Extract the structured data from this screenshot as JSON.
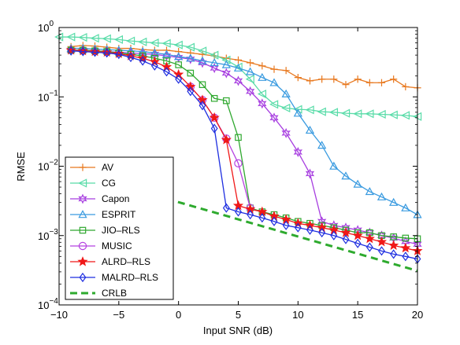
{
  "chart_data": {
    "type": "line",
    "xlabel": "Input SNR (dB)",
    "ylabel": "RMSE",
    "xlim": [
      -10,
      20
    ],
    "ylim": [
      0.0001,
      1
    ],
    "yscale": "log",
    "grid": false,
    "legend_position": "bottom-left",
    "x_ticks": [
      {
        "value": -10,
        "label": "−10"
      },
      {
        "value": -5,
        "label": "−5"
      },
      {
        "value": 0,
        "label": "0"
      },
      {
        "value": 5,
        "label": "5"
      },
      {
        "value": 10,
        "label": "10"
      },
      {
        "value": 15,
        "label": "15"
      },
      {
        "value": 20,
        "label": "20"
      }
    ],
    "y_ticks": [
      {
        "value": 1,
        "base": "10",
        "exp": "0"
      },
      {
        "value": 0.1,
        "base": "10",
        "exp": "−1"
      },
      {
        "value": 0.01,
        "base": "10",
        "exp": "−2"
      },
      {
        "value": 0.001,
        "base": "10",
        "exp": "−3"
      },
      {
        "value": 0.0001,
        "base": "10",
        "exp": "−4"
      }
    ],
    "series": [
      {
        "name": "AV",
        "color": "#e8781e",
        "marker": "plus",
        "dash": false,
        "x": [
          -9,
          -8,
          -7,
          -6,
          -5,
          -4,
          -3,
          -2,
          -1,
          0,
          1,
          2,
          3,
          4,
          5,
          6,
          7,
          8,
          9,
          10,
          11,
          12,
          13,
          14,
          15,
          16,
          17,
          18,
          19,
          20
        ],
        "y": [
          0.53,
          0.55,
          0.54,
          0.52,
          0.5,
          0.5,
          0.48,
          0.47,
          0.47,
          0.45,
          0.43,
          0.41,
          0.39,
          0.36,
          0.34,
          0.31,
          0.28,
          0.25,
          0.24,
          0.19,
          0.17,
          0.18,
          0.18,
          0.15,
          0.18,
          0.16,
          0.16,
          0.18,
          0.14,
          0.135
        ]
      },
      {
        "name": "CG",
        "color": "#58dca8",
        "marker": "triangle-left",
        "dash": false,
        "x": [
          -10,
          -9,
          -8,
          -7,
          -6,
          -5,
          -4,
          -3,
          -2,
          -1,
          0,
          1,
          2,
          3,
          4,
          5,
          6,
          7,
          8,
          9,
          10,
          11,
          12,
          13,
          14,
          15,
          16,
          17,
          18,
          19,
          20
        ],
        "y": [
          0.73,
          0.73,
          0.72,
          0.7,
          0.69,
          0.67,
          0.64,
          0.62,
          0.6,
          0.59,
          0.56,
          0.52,
          0.46,
          0.4,
          0.34,
          0.27,
          0.18,
          0.11,
          0.078,
          0.069,
          0.066,
          0.065,
          0.061,
          0.06,
          0.058,
          0.057,
          0.057,
          0.056,
          0.055,
          0.054,
          0.052
        ]
      },
      {
        "name": "Capon",
        "color": "#a73ee0",
        "marker": "star6",
        "dash": false,
        "x": [
          -9,
          -8,
          -7,
          -6,
          -5,
          -4,
          -3,
          -2,
          -1,
          0,
          1,
          2,
          3,
          4,
          5,
          6,
          7,
          8,
          9,
          10,
          11,
          12,
          13,
          14,
          15,
          16,
          17,
          18,
          19,
          20
        ],
        "y": [
          0.47,
          0.47,
          0.46,
          0.45,
          0.44,
          0.43,
          0.42,
          0.41,
          0.39,
          0.37,
          0.35,
          0.31,
          0.26,
          0.22,
          0.17,
          0.12,
          0.08,
          0.05,
          0.03,
          0.016,
          0.0078,
          0.0016,
          0.0014,
          0.0013,
          0.0012,
          0.0011,
          0.001,
          0.00092,
          0.00082,
          0.00075
        ]
      },
      {
        "name": "ESPRIT",
        "color": "#3a9be0",
        "marker": "triangle-up",
        "dash": false,
        "x": [
          -9,
          -8,
          -7,
          -6,
          -5,
          -4,
          -3,
          -2,
          -1,
          0,
          1,
          2,
          3,
          4,
          5,
          6,
          7,
          8,
          9,
          10,
          11,
          12,
          13,
          14,
          15,
          16,
          17,
          18,
          19,
          20
        ],
        "y": [
          0.5,
          0.5,
          0.49,
          0.48,
          0.47,
          0.46,
          0.45,
          0.43,
          0.41,
          0.38,
          0.36,
          0.33,
          0.31,
          0.29,
          0.26,
          0.23,
          0.19,
          0.16,
          0.11,
          0.058,
          0.033,
          0.02,
          0.01,
          0.0072,
          0.0055,
          0.0043,
          0.0036,
          0.003,
          0.0025,
          0.002
        ]
      },
      {
        "name": "JIO–RLS",
        "color": "#2fa82f",
        "marker": "square",
        "dash": false,
        "x": [
          -9,
          -8,
          -7,
          -6,
          -5,
          -4,
          -3,
          -2,
          -1,
          0,
          1,
          2,
          3,
          4,
          5,
          6,
          7,
          8,
          9,
          10,
          11,
          12,
          13,
          14,
          15,
          16,
          17,
          18,
          19,
          20
        ],
        "y": [
          0.47,
          0.47,
          0.46,
          0.45,
          0.43,
          0.41,
          0.39,
          0.36,
          0.33,
          0.29,
          0.22,
          0.15,
          0.095,
          0.088,
          0.026,
          0.0025,
          0.0022,
          0.002,
          0.0018,
          0.0016,
          0.0015,
          0.0014,
          0.0013,
          0.0012,
          0.0011,
          0.0011,
          0.001,
          0.00096,
          0.00092,
          0.0009
        ]
      },
      {
        "name": "MUSIC",
        "color": "#b540e0",
        "marker": "circle",
        "dash": false,
        "x": [
          1,
          2,
          3,
          4,
          5,
          6
        ],
        "y": [
          0.14,
          0.09,
          0.05,
          0.025,
          0.011,
          0.0025
        ]
      },
      {
        "name": "ALRD–RLS",
        "color": "#f01818",
        "marker": "star5",
        "dash": false,
        "x": [
          -9,
          -8,
          -7,
          -6,
          -5,
          -4,
          -3,
          -2,
          -1,
          0,
          1,
          2,
          3,
          4,
          5,
          6,
          7,
          8,
          9,
          10,
          11,
          12,
          13,
          14,
          15,
          16,
          17,
          18,
          19,
          20
        ],
        "y": [
          0.47,
          0.46,
          0.45,
          0.44,
          0.42,
          0.39,
          0.36,
          0.32,
          0.27,
          0.21,
          0.14,
          0.09,
          0.05,
          0.024,
          0.0027,
          0.0024,
          0.0022,
          0.0019,
          0.0017,
          0.0015,
          0.0014,
          0.0013,
          0.0012,
          0.0011,
          0.001,
          0.0009,
          0.00081,
          0.00072,
          0.00066,
          0.0006
        ]
      },
      {
        "name": "MALRD–RLS",
        "color": "#1e2ee0",
        "marker": "diamond",
        "dash": false,
        "x": [
          -9,
          -8,
          -7,
          -6,
          -5,
          -4,
          -3,
          -2,
          -1,
          0,
          1,
          2,
          3,
          4,
          5,
          6,
          7,
          8,
          9,
          10,
          11,
          12,
          13,
          14,
          15,
          16,
          17,
          18,
          19,
          20
        ],
        "y": [
          0.46,
          0.45,
          0.44,
          0.43,
          0.41,
          0.37,
          0.33,
          0.28,
          0.23,
          0.18,
          0.12,
          0.075,
          0.035,
          0.0025,
          0.0022,
          0.002,
          0.0018,
          0.0016,
          0.0014,
          0.0013,
          0.0012,
          0.0011,
          0.001,
          0.00088,
          0.00077,
          0.00068,
          0.0006,
          0.00054,
          0.0005,
          0.00046
        ]
      },
      {
        "name": "CRLB",
        "color": "#2eaa2e",
        "marker": "none",
        "dash": true,
        "x": [
          -1,
          20
        ],
        "y": [
          0.0034,
          0.00031
        ]
      }
    ]
  }
}
